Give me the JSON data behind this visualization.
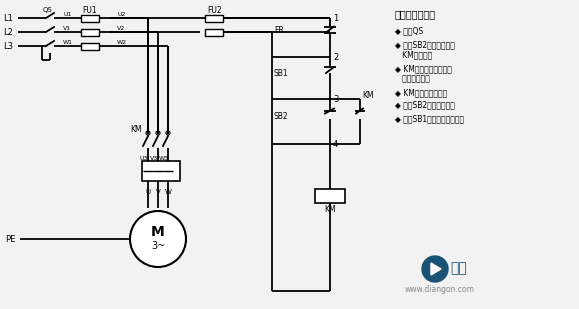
{
  "bg_color": "#f2f2f2",
  "line_color": "#000000",
  "right_title": "工作流程分析：",
  "bullet_points": [
    "◆ 闭合QS",
    "◆ 按下SB2控制电路闭合",
    "   KM线圈得电",
    "◆ KM主触点闭合主线路",
    "   接通电机启动",
    "◆ KM辅触点闭合自锁",
    "◆ 松开SB2电机保持转动",
    "◆ 按下SB1电路失电电机停转"
  ],
  "start_btn_text": "开始",
  "website": "www.diangon.com"
}
